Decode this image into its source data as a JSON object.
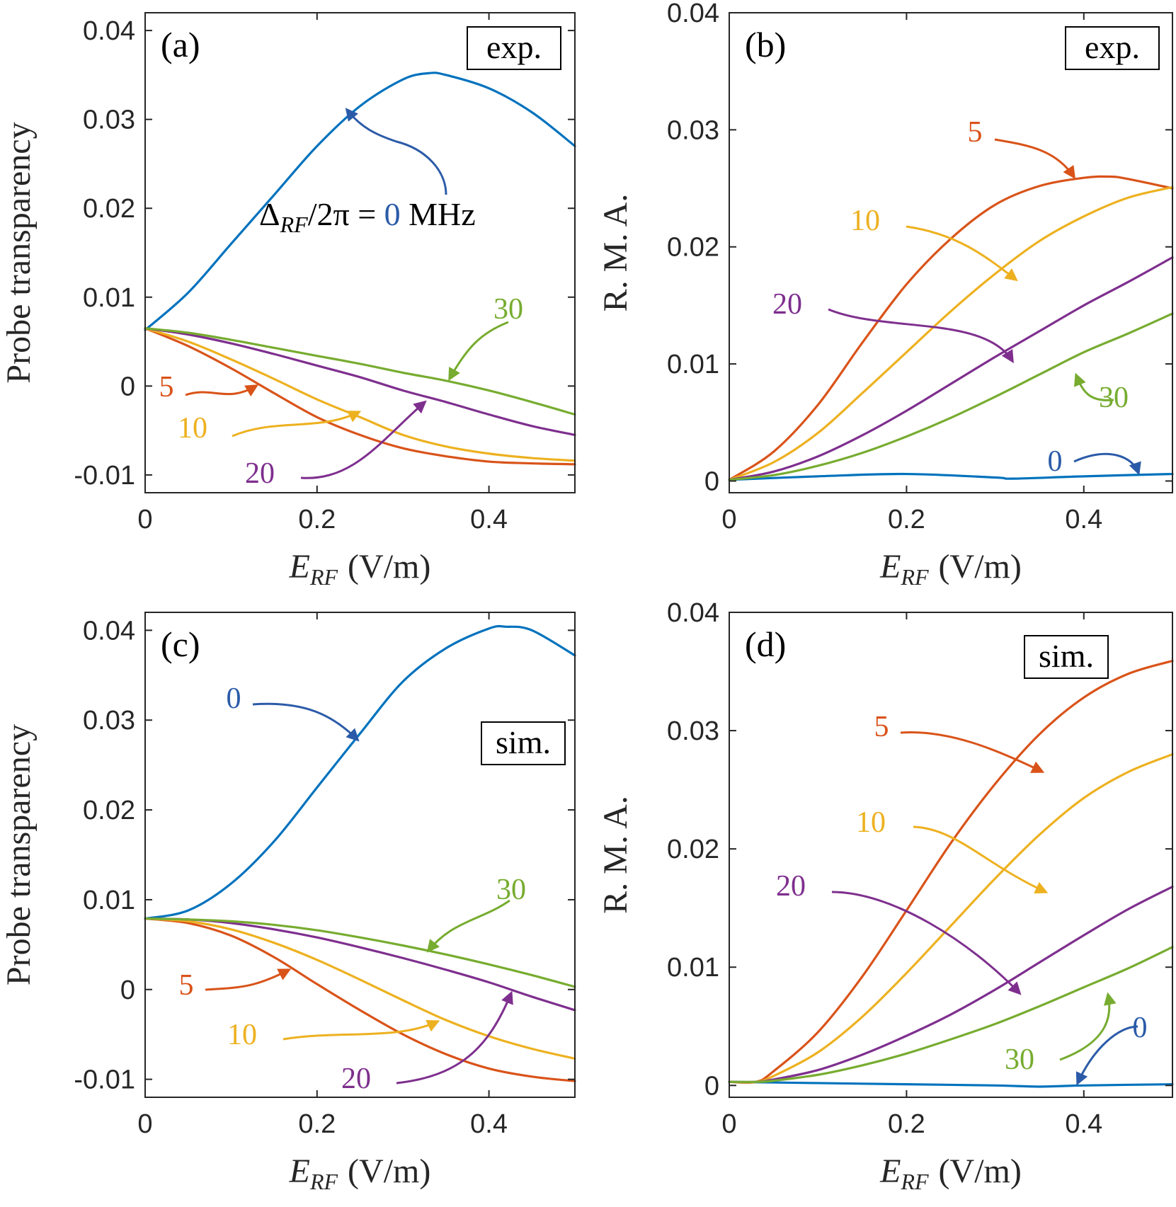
{
  "colors": {
    "d0": "#0072BD",
    "d5": "#D95319",
    "d10": "#EDB120",
    "d20": "#7E2F8E",
    "d30": "#77AC30",
    "label0": "#2B5BA8",
    "axis": "#262626"
  },
  "chart_data": [
    {
      "id": "a",
      "type": "line",
      "panel_label": "(a)",
      "tag": "exp.",
      "ylabel": "Probe transparency",
      "xlabel_var": "E",
      "xlabel_sub": "RF",
      "xlabel_unit": "(V/m)",
      "xlim": [
        0,
        0.5
      ],
      "ylim": [
        -0.012,
        0.042
      ],
      "xticks": [
        "0",
        "0.2",
        "0.4"
      ],
      "yticks": [
        "-0.01",
        "0",
        "0.01",
        "0.02",
        "0.03",
        "0.04"
      ],
      "detuning_label": "Δ_RF/2π = 0 MHz",
      "annotation_parts": [
        "Δ",
        "RF",
        "/2π = ",
        "0",
        " MHz"
      ],
      "series": [
        {
          "name": "0",
          "color_key": "d0",
          "x": [
            0,
            0.05,
            0.1,
            0.15,
            0.2,
            0.25,
            0.3,
            0.33,
            0.35,
            0.4,
            0.45,
            0.5
          ],
          "y": [
            0.0063,
            0.0105,
            0.016,
            0.0215,
            0.027,
            0.0315,
            0.0345,
            0.0352,
            0.035,
            0.0335,
            0.0308,
            0.027
          ]
        },
        {
          "name": "5",
          "color_key": "d5",
          "x": [
            0,
            0.05,
            0.1,
            0.15,
            0.2,
            0.25,
            0.3,
            0.35,
            0.4,
            0.45,
            0.5
          ],
          "y": [
            0.0065,
            0.0045,
            0.002,
            -0.0008,
            -0.0035,
            -0.0055,
            -0.007,
            -0.0079,
            -0.0085,
            -0.0087,
            -0.0088
          ]
        },
        {
          "name": "10",
          "color_key": "d10",
          "x": [
            0,
            0.05,
            0.1,
            0.15,
            0.2,
            0.25,
            0.3,
            0.35,
            0.4,
            0.45,
            0.5
          ],
          "y": [
            0.0065,
            0.005,
            0.003,
            0.0008,
            -0.0015,
            -0.0035,
            -0.0055,
            -0.0068,
            -0.0076,
            -0.0081,
            -0.0084
          ]
        },
        {
          "name": "20",
          "color_key": "d20",
          "x": [
            0,
            0.05,
            0.1,
            0.15,
            0.2,
            0.25,
            0.3,
            0.35,
            0.4,
            0.45,
            0.5
          ],
          "y": [
            0.0065,
            0.0058,
            0.0048,
            0.0036,
            0.0023,
            0.001,
            -0.0005,
            -0.0018,
            -0.0032,
            -0.0045,
            -0.0055
          ]
        },
        {
          "name": "30",
          "color_key": "d30",
          "x": [
            0,
            0.05,
            0.1,
            0.15,
            0.2,
            0.25,
            0.3,
            0.35,
            0.4,
            0.45,
            0.5
          ],
          "y": [
            0.0065,
            0.006,
            0.0052,
            0.0043,
            0.0034,
            0.0025,
            0.0015,
            0.0006,
            -0.0005,
            -0.0018,
            -0.0032
          ]
        }
      ],
      "callouts": [
        {
          "text": "5",
          "color_key": "d5"
        },
        {
          "text": "10",
          "color_key": "d10"
        },
        {
          "text": "20",
          "color_key": "d20"
        },
        {
          "text": "30",
          "color_key": "d30"
        }
      ]
    },
    {
      "id": "b",
      "type": "line",
      "panel_label": "(b)",
      "tag": "exp.",
      "ylabel": "R. M. A.",
      "xlabel_var": "E",
      "xlabel_sub": "RF",
      "xlabel_unit": "(V/m)",
      "xlim": [
        0,
        0.5
      ],
      "ylim": [
        -0.001,
        0.04
      ],
      "xticks": [
        "0",
        "0.2",
        "0.4"
      ],
      "yticks": [
        "0",
        "0.01",
        "0.02",
        "0.03",
        "0.04"
      ],
      "series": [
        {
          "name": "0",
          "color_key": "d0",
          "x": [
            0,
            0.1,
            0.2,
            0.3,
            0.32,
            0.4,
            0.5
          ],
          "y": [
            0.0001,
            0.0004,
            0.0006,
            0.0003,
            0.0002,
            0.0004,
            0.0006
          ]
        },
        {
          "name": "5",
          "color_key": "d5",
          "x": [
            0,
            0.05,
            0.1,
            0.15,
            0.2,
            0.25,
            0.3,
            0.35,
            0.4,
            0.43,
            0.45,
            0.5
          ],
          "y": [
            0.0001,
            0.0025,
            0.0065,
            0.0118,
            0.0168,
            0.0207,
            0.0236,
            0.0252,
            0.0259,
            0.026,
            0.0258,
            0.025
          ]
        },
        {
          "name": "10",
          "color_key": "d10",
          "x": [
            0,
            0.05,
            0.1,
            0.15,
            0.2,
            0.25,
            0.3,
            0.35,
            0.4,
            0.45,
            0.5
          ],
          "y": [
            0.0001,
            0.0016,
            0.0041,
            0.0075,
            0.011,
            0.0145,
            0.0177,
            0.0205,
            0.0226,
            0.0242,
            0.0251
          ]
        },
        {
          "name": "20",
          "color_key": "d20",
          "x": [
            0,
            0.05,
            0.1,
            0.15,
            0.2,
            0.25,
            0.3,
            0.35,
            0.4,
            0.45,
            0.5
          ],
          "y": [
            0.0001,
            0.0008,
            0.0021,
            0.0039,
            0.006,
            0.0083,
            0.0106,
            0.0128,
            0.015,
            0.017,
            0.0191
          ]
        },
        {
          "name": "30",
          "color_key": "d30",
          "x": [
            0,
            0.05,
            0.1,
            0.15,
            0.2,
            0.25,
            0.3,
            0.35,
            0.4,
            0.45,
            0.5
          ],
          "y": [
            0.0001,
            0.0005,
            0.0013,
            0.0024,
            0.0038,
            0.0054,
            0.0072,
            0.0091,
            0.011,
            0.0126,
            0.0143
          ]
        }
      ],
      "callouts": [
        {
          "text": "5",
          "color_key": "d5"
        },
        {
          "text": "10",
          "color_key": "d10"
        },
        {
          "text": "20",
          "color_key": "d20"
        },
        {
          "text": "30",
          "color_key": "d30"
        },
        {
          "text": "0",
          "color_key": "label0"
        }
      ]
    },
    {
      "id": "c",
      "type": "line",
      "panel_label": "(c)",
      "tag": "sim.",
      "ylabel": "Probe transparency",
      "xlabel_var": "E",
      "xlabel_sub": "RF",
      "xlabel_unit": "(V/m)",
      "xlim": [
        0,
        0.5
      ],
      "ylim": [
        -0.012,
        0.042
      ],
      "xticks": [
        "0",
        "0.2",
        "0.4"
      ],
      "yticks": [
        "-0.01",
        "0",
        "0.01",
        "0.02",
        "0.03",
        "0.04"
      ],
      "series": [
        {
          "name": "0",
          "color_key": "d0",
          "x": [
            0,
            0.05,
            0.1,
            0.15,
            0.2,
            0.25,
            0.3,
            0.35,
            0.4,
            0.42,
            0.45,
            0.5
          ],
          "y": [
            0.0079,
            0.0088,
            0.0118,
            0.0165,
            0.0225,
            0.0285,
            0.0343,
            0.038,
            0.0402,
            0.0404,
            0.04,
            0.0372
          ]
        },
        {
          "name": "5",
          "color_key": "d5",
          "x": [
            0,
            0.05,
            0.1,
            0.15,
            0.2,
            0.25,
            0.3,
            0.35,
            0.4,
            0.45,
            0.5
          ],
          "y": [
            0.0079,
            0.0074,
            0.006,
            0.0036,
            0.0006,
            -0.0023,
            -0.005,
            -0.0072,
            -0.0088,
            -0.0097,
            -0.0102
          ]
        },
        {
          "name": "10",
          "color_key": "d10",
          "x": [
            0,
            0.05,
            0.1,
            0.15,
            0.2,
            0.25,
            0.3,
            0.35,
            0.4,
            0.45,
            0.5
          ],
          "y": [
            0.0079,
            0.0076,
            0.0067,
            0.0052,
            0.0033,
            0.0011,
            -0.0012,
            -0.0034,
            -0.0052,
            -0.0066,
            -0.0077
          ]
        },
        {
          "name": "20",
          "color_key": "d20",
          "x": [
            0,
            0.05,
            0.1,
            0.15,
            0.2,
            0.25,
            0.3,
            0.35,
            0.4,
            0.45,
            0.5
          ],
          "y": [
            0.0079,
            0.0078,
            0.0074,
            0.0067,
            0.0058,
            0.0047,
            0.0035,
            0.0022,
            0.0008,
            -0.0008,
            -0.0023
          ]
        },
        {
          "name": "30",
          "color_key": "d30",
          "x": [
            0,
            0.05,
            0.1,
            0.15,
            0.2,
            0.25,
            0.3,
            0.35,
            0.4,
            0.45,
            0.5
          ],
          "y": [
            0.0079,
            0.0078,
            0.0076,
            0.0072,
            0.0066,
            0.0058,
            0.0049,
            0.0039,
            0.0028,
            0.0016,
            0.0003
          ]
        }
      ],
      "callouts": [
        {
          "text": "0",
          "color_key": "label0"
        },
        {
          "text": "5",
          "color_key": "d5"
        },
        {
          "text": "10",
          "color_key": "d10"
        },
        {
          "text": "20",
          "color_key": "d20"
        },
        {
          "text": "30",
          "color_key": "d30"
        }
      ]
    },
    {
      "id": "d",
      "type": "line",
      "panel_label": "(d)",
      "tag": "sim.",
      "ylabel": "R. M. A.",
      "xlabel_var": "E",
      "xlabel_sub": "RF",
      "xlabel_unit": "(V/m)",
      "xlim": [
        0,
        0.5
      ],
      "ylim": [
        -0.001,
        0.04
      ],
      "xticks": [
        "0",
        "0.2",
        "0.4"
      ],
      "yticks": [
        "0",
        "0.01",
        "0.02",
        "0.03",
        "0.04"
      ],
      "series": [
        {
          "name": "0",
          "color_key": "d0",
          "x": [
            0,
            0.1,
            0.2,
            0.3,
            0.35,
            0.4,
            0.5
          ],
          "y": [
            0.0003,
            0.0002,
            0.0001,
            0.0,
            -0.0001,
            0.0,
            0.0001
          ]
        },
        {
          "name": "5",
          "color_key": "d5",
          "x": [
            0,
            0.03,
            0.05,
            0.1,
            0.15,
            0.2,
            0.25,
            0.3,
            0.35,
            0.4,
            0.45,
            0.5
          ],
          "y": [
            0.0003,
            0.0003,
            0.0012,
            0.0045,
            0.0092,
            0.0148,
            0.0205,
            0.0255,
            0.0297,
            0.0328,
            0.0348,
            0.0359
          ]
        },
        {
          "name": "10",
          "color_key": "d10",
          "x": [
            0,
            0.03,
            0.05,
            0.1,
            0.15,
            0.2,
            0.25,
            0.3,
            0.35,
            0.4,
            0.45,
            0.5
          ],
          "y": [
            0.0003,
            0.0003,
            0.0008,
            0.0028,
            0.0058,
            0.0095,
            0.0135,
            0.0175,
            0.0212,
            0.0243,
            0.0265,
            0.028
          ]
        },
        {
          "name": "20",
          "color_key": "d20",
          "x": [
            0,
            0.03,
            0.05,
            0.1,
            0.15,
            0.2,
            0.25,
            0.3,
            0.35,
            0.4,
            0.45,
            0.5
          ],
          "y": [
            0.0003,
            0.0003,
            0.0005,
            0.0013,
            0.0026,
            0.0042,
            0.006,
            0.0081,
            0.0104,
            0.0127,
            0.0149,
            0.0168
          ]
        },
        {
          "name": "30",
          "color_key": "d30",
          "x": [
            0,
            0.03,
            0.05,
            0.1,
            0.15,
            0.2,
            0.25,
            0.3,
            0.35,
            0.4,
            0.45,
            0.5
          ],
          "y": [
            0.0003,
            0.0003,
            0.0004,
            0.0009,
            0.0017,
            0.0027,
            0.0039,
            0.0052,
            0.0067,
            0.0083,
            0.0099,
            0.0117
          ]
        }
      ],
      "callouts": [
        {
          "text": "5",
          "color_key": "d5"
        },
        {
          "text": "10",
          "color_key": "d10"
        },
        {
          "text": "20",
          "color_key": "d20"
        },
        {
          "text": "30",
          "color_key": "d30"
        },
        {
          "text": "0",
          "color_key": "label0"
        }
      ]
    }
  ]
}
